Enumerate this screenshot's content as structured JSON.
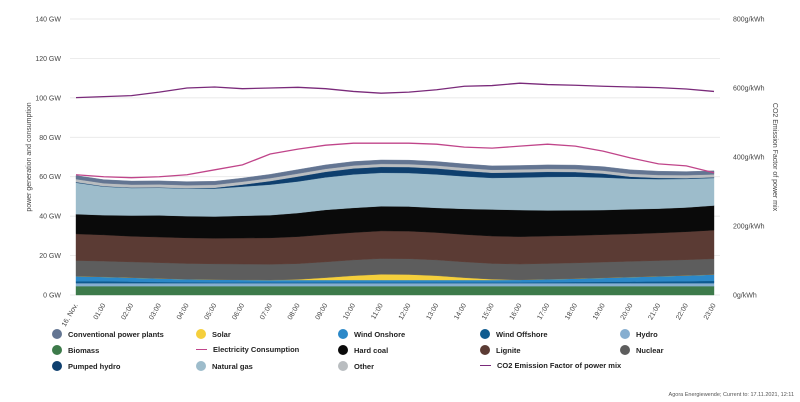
{
  "chart_data": {
    "type": "area",
    "x": [
      "16. Nov.",
      "01:00",
      "02:00",
      "03:00",
      "04:00",
      "05:00",
      "06:00",
      "07:00",
      "08:00",
      "09:00",
      "10:00",
      "11:00",
      "12:00",
      "13:00",
      "14:00",
      "15:00",
      "16:00",
      "17:00",
      "18:00",
      "19:00",
      "20:00",
      "21:00",
      "22:00",
      "23:00"
    ],
    "ylabel_left": "power generation and consumption",
    "ylabel_right": "CO2 Emission Factor of power mix",
    "y_ticks_left": [
      "0 GW",
      "20 GW",
      "40 GW",
      "60 GW",
      "80 GW",
      "100 GW",
      "120 GW",
      "140 GW"
    ],
    "y_ticks_right": [
      "0g/kWh",
      "200g/kWh",
      "400g/kWh",
      "600g/kWh",
      "800g/kWh"
    ],
    "ylim_left": [
      0,
      140
    ],
    "ylim_right": [
      0,
      800
    ],
    "grid": true,
    "stacked_series": [
      {
        "name": "Biomass",
        "color": "#3d7a4a",
        "values": [
          4.5,
          4.5,
          4.5,
          4.5,
          4.5,
          4.5,
          4.5,
          4.5,
          4.5,
          4.5,
          4.5,
          4.5,
          4.5,
          4.5,
          4.5,
          4.5,
          4.5,
          4.5,
          4.5,
          4.5,
          4.5,
          4.5,
          4.5,
          4.5
        ]
      },
      {
        "name": "Hydro",
        "color": "#86aed0",
        "values": [
          1.5,
          1.5,
          1.5,
          1.5,
          1.5,
          1.5,
          1.5,
          1.5,
          1.5,
          1.5,
          1.5,
          1.5,
          1.5,
          1.5,
          1.5,
          1.5,
          1.5,
          1.5,
          1.5,
          1.5,
          1.5,
          1.5,
          1.5,
          1.5
        ]
      },
      {
        "name": "Wind Offshore",
        "color": "#0f5b8f",
        "values": [
          1.0,
          1.0,
          0.8,
          0.6,
          0.5,
          0.4,
          0.4,
          0.4,
          0.4,
          0.4,
          0.4,
          0.4,
          0.4,
          0.4,
          0.4,
          0.4,
          0.4,
          0.5,
          0.6,
          0.7,
          0.8,
          0.9,
          1.0,
          1.2
        ]
      },
      {
        "name": "Wind Onshore",
        "color": "#2b88c8",
        "values": [
          2.5,
          2.2,
          2.0,
          1.8,
          1.5,
          1.4,
          1.3,
          1.2,
          1.2,
          1.2,
          1.2,
          1.2,
          1.2,
          1.2,
          1.2,
          1.2,
          1.3,
          1.5,
          1.7,
          2.0,
          2.3,
          2.6,
          2.9,
          3.2
        ]
      },
      {
        "name": "Solar",
        "color": "#f5cf3c",
        "values": [
          0,
          0,
          0,
          0,
          0,
          0,
          0,
          0,
          0.3,
          1.2,
          2.2,
          2.9,
          2.8,
          2.2,
          1.2,
          0.4,
          0,
          0,
          0,
          0,
          0,
          0,
          0,
          0
        ]
      },
      {
        "name": "Nuclear",
        "color": "#5d5d5d",
        "values": [
          8.0,
          8.0,
          8.0,
          8.0,
          8.0,
          8.0,
          8.0,
          8.0,
          8.0,
          8.0,
          8.0,
          8.0,
          8.0,
          8.0,
          8.0,
          8.0,
          8.0,
          8.0,
          8.0,
          8.0,
          8.0,
          8.0,
          8.0,
          8.0
        ]
      },
      {
        "name": "Lignite",
        "color": "#5b3b34",
        "values": [
          13.5,
          13.3,
          13.0,
          13.0,
          13.0,
          13.0,
          13.2,
          13.4,
          13.7,
          13.9,
          13.9,
          14.0,
          14.0,
          13.9,
          13.9,
          13.9,
          13.9,
          13.9,
          13.9,
          13.9,
          13.9,
          14.0,
          14.2,
          14.5
        ]
      },
      {
        "name": "Hard coal",
        "color": "#0a0a0a",
        "values": [
          10.0,
          10.0,
          10.5,
          11.0,
          11.0,
          11.0,
          11.3,
          11.5,
          12.0,
          12.5,
          12.5,
          12.5,
          12.5,
          12.5,
          13.0,
          13.5,
          13.5,
          13.0,
          12.8,
          12.5,
          12.5,
          12.3,
          12.3,
          12.5
        ]
      },
      {
        "name": "Natural gas",
        "color": "#9dbccb",
        "values": [
          16.0,
          14.5,
          14.0,
          14.0,
          14.0,
          14.2,
          14.8,
          15.5,
          16.0,
          16.5,
          17.0,
          17.0,
          17.0,
          17.0,
          16.5,
          16.0,
          16.5,
          17.0,
          17.0,
          16.5,
          15.5,
          15.0,
          14.5,
          14.0
        ]
      },
      {
        "name": "Pumped hydro",
        "color": "#0e3f6e",
        "values": [
          0.3,
          0.2,
          0.2,
          0.2,
          0.2,
          0.4,
          1.0,
          1.8,
          2.5,
          2.8,
          3.0,
          3.0,
          3.0,
          3.0,
          2.8,
          2.6,
          2.6,
          2.6,
          2.4,
          2.0,
          1.0,
          0.6,
          0.4,
          0.3
        ]
      },
      {
        "name": "Other",
        "color": "#b9bdc0",
        "values": [
          1.5,
          1.5,
          1.5,
          1.5,
          1.5,
          1.5,
          1.5,
          1.5,
          1.5,
          1.5,
          1.5,
          1.5,
          1.5,
          1.5,
          1.5,
          1.5,
          1.5,
          1.5,
          1.5,
          1.5,
          1.5,
          1.5,
          1.5,
          1.5
        ]
      },
      {
        "name": "Conventional power plants",
        "color": "#637592",
        "values": [
          1.8,
          1.8,
          1.8,
          1.8,
          1.8,
          1.8,
          1.8,
          1.9,
          2.0,
          2.0,
          2.0,
          2.0,
          2.0,
          2.0,
          2.0,
          2.0,
          2.0,
          2.0,
          2.0,
          2.0,
          2.0,
          1.9,
          1.8,
          1.8
        ]
      }
    ],
    "line_series": [
      {
        "name": "Electricity Consumption",
        "color": "#c0458a",
        "axis": "left",
        "values": [
          61,
          60,
          59.5,
          60,
          61,
          63.5,
          66,
          71.5,
          74,
          76,
          77,
          77,
          77,
          76.5,
          75,
          74.5,
          75.5,
          76.5,
          75.5,
          73,
          69.5,
          66.5,
          65.5,
          62
        ]
      },
      {
        "name": "CO2 Emission Factor of power mix",
        "color": "#7a2a7a",
        "axis": "right",
        "values": [
          572,
          575,
          578,
          588,
          600,
          603,
          598,
          600,
          602,
          598,
          590,
          585,
          588,
          595,
          605,
          607,
          614,
          610,
          608,
          605,
          603,
          601,
          597,
          590
        ]
      }
    ]
  },
  "legend": [
    {
      "name": "Conventional power plants",
      "kind": "dot",
      "color": "#637592"
    },
    {
      "name": "Solar",
      "kind": "dot",
      "color": "#f5cf3c"
    },
    {
      "name": "Wind Onshore",
      "kind": "dot",
      "color": "#2b88c8"
    },
    {
      "name": "Wind Offshore",
      "kind": "dot",
      "color": "#0f5b8f"
    },
    {
      "name": "Hydro",
      "kind": "dot",
      "color": "#86aed0"
    },
    {
      "name": "Biomass",
      "kind": "dot",
      "color": "#3d7a4a"
    },
    {
      "name": "Electricity Consumption",
      "kind": "line",
      "color": "#c0458a"
    },
    {
      "name": "Hard coal",
      "kind": "dot",
      "color": "#0a0a0a"
    },
    {
      "name": "Lignite",
      "kind": "dot",
      "color": "#5b3b34"
    },
    {
      "name": "Nuclear",
      "kind": "dot",
      "color": "#5d5d5d"
    },
    {
      "name": "Pumped hydro",
      "kind": "dot",
      "color": "#0e3f6e"
    },
    {
      "name": "Natural gas",
      "kind": "dot",
      "color": "#9dbccb"
    },
    {
      "name": "Other",
      "kind": "dot",
      "color": "#b9bdc0"
    },
    {
      "name": "CO2 Emission Factor of power mix",
      "kind": "line",
      "color": "#7a2a7a"
    }
  ],
  "credit": "Agora Energiewende; Current to: 17.11.2021, 12:11"
}
